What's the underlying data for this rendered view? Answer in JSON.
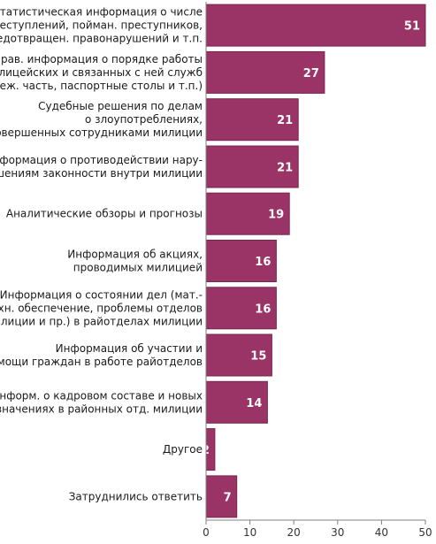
{
  "chart_data": {
    "type": "bar",
    "orientation": "horizontal",
    "title": "",
    "xlabel": "",
    "ylabel": "",
    "categories": [
      [
        "Статистическая информация о числе",
        "преступлений, пойман. преступников,",
        "предотвращен. правонарушений и т.п."
      ],
      [
        "Справ. информация о порядке работы",
        "милицейских и связанных с ней служб",
        "(деж. часть, паспортные столы и т.п.)"
      ],
      [
        "Судебные решения по делам",
        "о злоупотреблениях,",
        "совершенных сотрудниками милиции"
      ],
      [
        "Информация о противодействии нару-",
        "шениям законности внутри милиции"
      ],
      [
        "Аналитические обзоры и прогнозы"
      ],
      [
        "Информация об акциях,",
        "проводимых милицией"
      ],
      [
        "Информация о состоянии дел (мат.-",
        "техн. обеспечение, проблемы отделов",
        "милиции и пр.) в райотделах милиции"
      ],
      [
        "Информация об участии и",
        "помощи граждан в работе райотделов"
      ],
      [
        "Информ. о кадровом составе и новых",
        "назначениях в районных отд. милиции"
      ],
      [
        "Другое"
      ],
      [
        "Затруднились ответить"
      ]
    ],
    "values": [
      51,
      27,
      21,
      21,
      19,
      16,
      16,
      15,
      14,
      2,
      7
    ],
    "value_labels": [
      "51",
      "27",
      "21",
      "21",
      "19",
      "16",
      "16",
      "15",
      "14",
      "2",
      "7"
    ],
    "xlim": [
      0,
      50
    ],
    "xticks": [
      0,
      10,
      20,
      30,
      40,
      50
    ],
    "xtick_labels": [
      "0",
      "10",
      "20",
      "30",
      "40",
      "50"
    ],
    "grid": false,
    "legend": "none",
    "bar_color": "#9b3466",
    "bar_border_color": "#7a2450",
    "axis_color": "#808080",
    "label_color": "#1a1a1a"
  }
}
